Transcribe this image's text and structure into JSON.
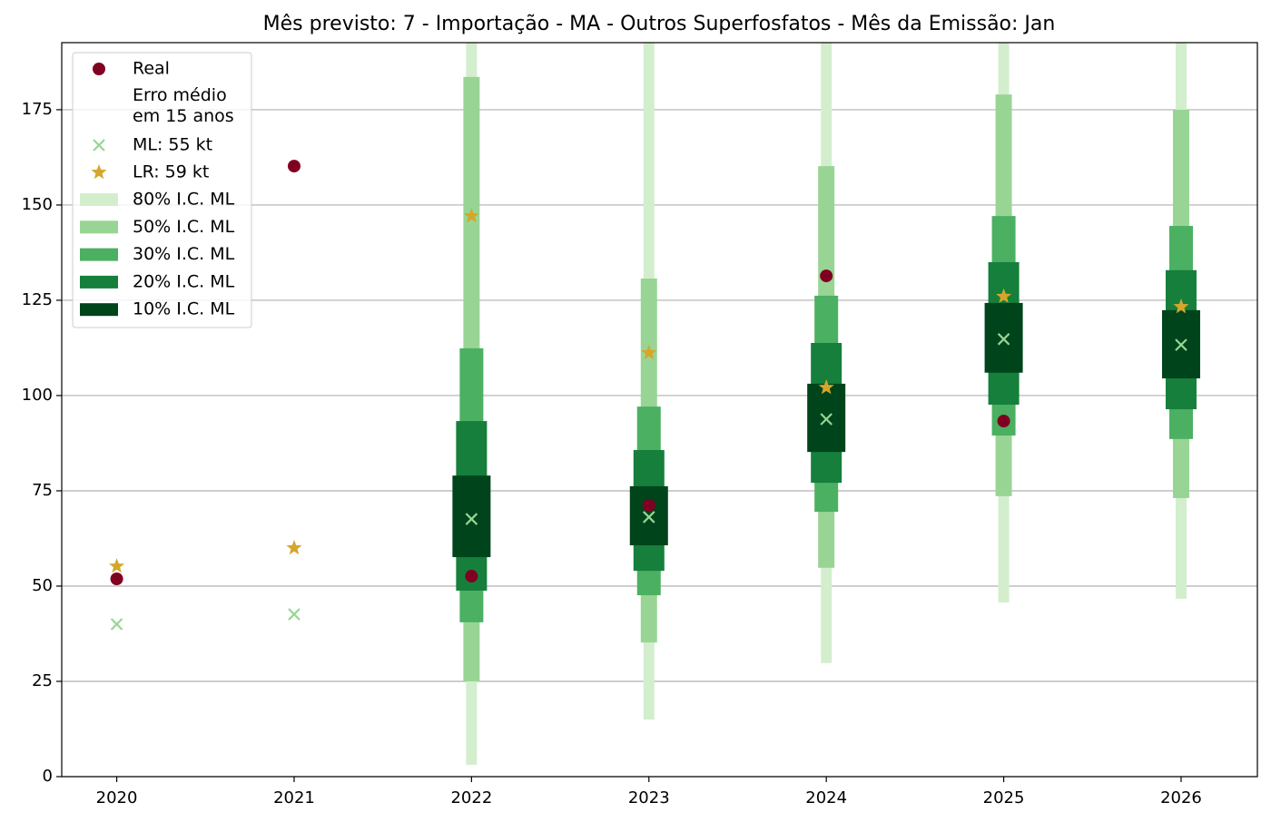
{
  "chart_data": {
    "type": "interval",
    "title": "Mês previsto: 7 - Importação - MA - Outros Superfosfatos - Mês da Emissão: Jan",
    "x": [
      2020,
      2021,
      2022,
      2023,
      2024,
      2025,
      2026
    ],
    "xlim": [
      2019.69,
      2026.43
    ],
    "xticks": [
      2020,
      2021,
      2022,
      2023,
      2024,
      2025,
      2026
    ],
    "ylim": [
      0,
      192.6
    ],
    "yticks": [
      0,
      25,
      50,
      75,
      100,
      125,
      150,
      175
    ],
    "grid": "y",
    "legend_loc": "upper left",
    "legend_note": "Erro médio\nem 15 anos",
    "intervals": [
      {
        "name": "80% I.C. ML",
        "color": "#d3eecd",
        "low": [
          null,
          null,
          3.1,
          15,
          29.8,
          45.7,
          46.7
        ],
        "high": [
          null,
          null,
          200,
          200,
          200,
          200,
          200
        ]
      },
      {
        "name": "50% I.C. ML",
        "color": "#98d594",
        "low": [
          null,
          null,
          25,
          35.2,
          54.8,
          73.6,
          73.1
        ],
        "high": [
          null,
          null,
          183.6,
          130.7,
          160.2,
          179,
          175
        ]
      },
      {
        "name": "30% I.C. ML",
        "color": "#4bb062",
        "low": [
          null,
          null,
          40.5,
          47.6,
          69.5,
          89.5,
          88.6
        ],
        "high": [
          null,
          null,
          112.4,
          97.1,
          126.2,
          147.1,
          144.5
        ]
      },
      {
        "name": "20% I.C. ML",
        "color": "#157f3b",
        "low": [
          null,
          null,
          48.8,
          54,
          77.1,
          97.6,
          96.4
        ],
        "high": [
          null,
          null,
          93.3,
          85.7,
          113.8,
          135,
          132.9
        ]
      },
      {
        "name": "10% I.C. ML",
        "color": "#00441b",
        "low": [
          null,
          null,
          57.6,
          60.7,
          85.2,
          106,
          104.5
        ],
        "high": [
          null,
          null,
          79,
          76.2,
          103.1,
          124.3,
          122.4
        ]
      }
    ],
    "series": [
      {
        "name": "Real",
        "color": "#7f0020",
        "marker": "circle",
        "values": [
          51.9,
          160.2,
          52.6,
          71.2,
          131.4,
          93.3,
          null
        ]
      },
      {
        "name": "ML: 55 kt",
        "color": "#98d594",
        "marker": "x",
        "values": [
          40,
          42.6,
          67.6,
          68.1,
          93.8,
          114.8,
          113.3
        ]
      },
      {
        "name": "LR: 59 kt",
        "color": "#d4a72c",
        "marker": "star",
        "values": [
          55.2,
          60,
          147.1,
          111.2,
          102.1,
          126,
          123.3
        ]
      }
    ]
  }
}
